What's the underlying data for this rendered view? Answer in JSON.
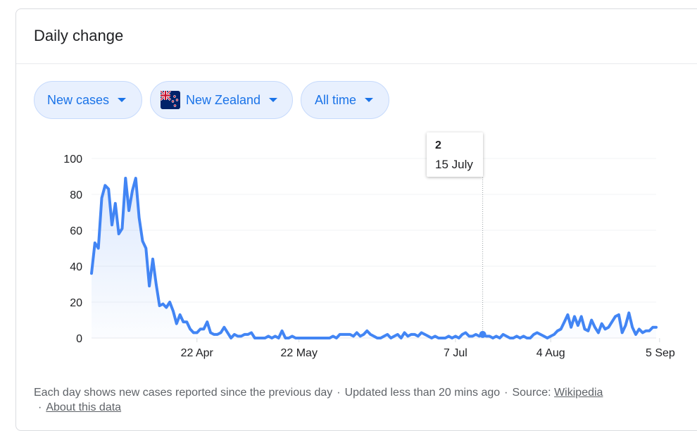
{
  "card": {
    "title": "Daily change"
  },
  "controls": {
    "metric": "New cases",
    "region": "New Zealand",
    "range": "All time",
    "region_flag_icon": "new-zealand-flag-icon",
    "caret_icon": "caret-down-icon"
  },
  "tooltip": {
    "value": "2",
    "date": "15 July"
  },
  "footer": {
    "description": "Each day shows new cases reported since the previous day",
    "updated": "Updated less than 20 mins ago",
    "source_label": "Source:",
    "source_link": "Wikipedia",
    "about_link": "About this data",
    "separator": "·"
  },
  "colors": {
    "accent": "#1a73e8",
    "line": "#4285f4",
    "chip_bg": "#e8f0fe",
    "grid": "#f1f3f4"
  },
  "chart_data": {
    "type": "area",
    "title": "",
    "xlabel": "",
    "ylabel": "",
    "ylim": [
      0,
      100
    ],
    "y_ticks": [
      0,
      20,
      40,
      60,
      80,
      100
    ],
    "x_ticks": [
      "22 Apr",
      "22 May",
      "7 Jul",
      "4 Aug",
      "5 Sep"
    ],
    "x_tick_index": [
      31,
      61,
      107,
      135,
      167
    ],
    "grid": true,
    "legend": "none",
    "highlight": {
      "label": "15 July",
      "index": 115,
      "value": 2
    },
    "series": [
      {
        "values": [
          36,
          53,
          50,
          78,
          85,
          83,
          63,
          75,
          58,
          61,
          89,
          71,
          82,
          89,
          67,
          54,
          50,
          29,
          44,
          30,
          18,
          19,
          17,
          20,
          15,
          8,
          13,
          9,
          9,
          5,
          3,
          3,
          5,
          5,
          9,
          3,
          2,
          2,
          3,
          6,
          3,
          0,
          2,
          1,
          1,
          2,
          2,
          3,
          0,
          0,
          0,
          0,
          1,
          0,
          1,
          0,
          4,
          0,
          0,
          1,
          0,
          0,
          0,
          0,
          0,
          0,
          0,
          0,
          0,
          0,
          0,
          1,
          0,
          2,
          2,
          2,
          2,
          1,
          3,
          1,
          2,
          4,
          2,
          1,
          0,
          0,
          1,
          2,
          0,
          1,
          2,
          0,
          3,
          1,
          2,
          2,
          1,
          3,
          2,
          1,
          0,
          1,
          0,
          0,
          0,
          1,
          0,
          1,
          0,
          2,
          3,
          1,
          1,
          2,
          1,
          2,
          1,
          1,
          0,
          1,
          0,
          2,
          1,
          0,
          0,
          1,
          0,
          1,
          0,
          0,
          2,
          3,
          2,
          1,
          0,
          1,
          2,
          4,
          5,
          9,
          13,
          6,
          12,
          7,
          12,
          5,
          4,
          10,
          6,
          3,
          8,
          5,
          6,
          9,
          12,
          13,
          3,
          7,
          14,
          6,
          2,
          5,
          3,
          4,
          4,
          6,
          6
        ]
      }
    ]
  }
}
